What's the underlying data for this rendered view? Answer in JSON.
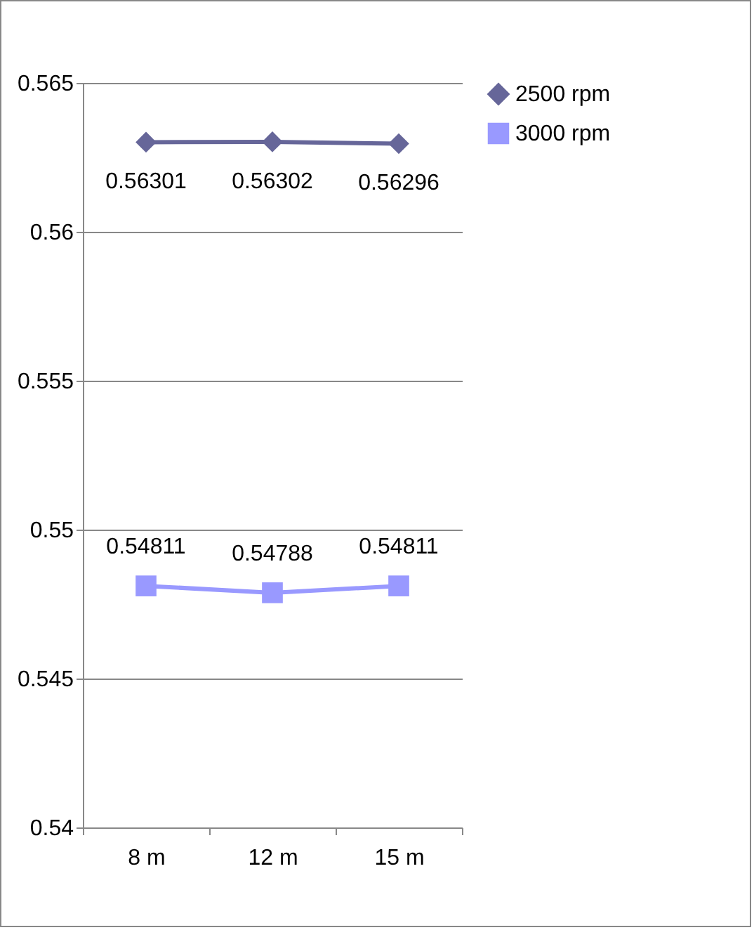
{
  "chart_data": {
    "type": "line",
    "categories": [
      "8 m",
      "12 m",
      "15 m"
    ],
    "series": [
      {
        "name": "2500 rpm",
        "color": "#666699",
        "marker": "diamond",
        "values": [
          0.56301,
          0.56302,
          0.56296
        ]
      },
      {
        "name": "3000 rpm",
        "color": "#9999ff",
        "marker": "square",
        "values": [
          0.54811,
          0.54788,
          0.54811
        ]
      }
    ],
    "ylim": [
      0.54,
      0.565
    ],
    "yticks": [
      0.54,
      0.545,
      0.55,
      0.555,
      0.56,
      0.565
    ],
    "grid": "y",
    "legend": "right",
    "data_labels": true
  }
}
